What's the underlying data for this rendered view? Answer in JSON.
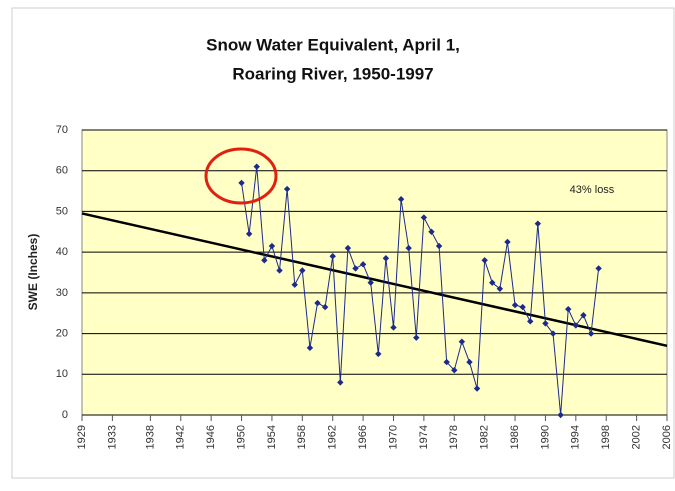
{
  "chart_data": {
    "type": "line",
    "title": [
      "Snow Water Equivalent, April 1,",
      "Roaring River, 1950-1997"
    ],
    "ylabel": "SWE (Inches)",
    "annotation": "43% loss",
    "x": [
      1950,
      1951,
      1952,
      1953,
      1954,
      1955,
      1956,
      1957,
      1958,
      1959,
      1960,
      1961,
      1962,
      1963,
      1964,
      1965,
      1966,
      1967,
      1968,
      1969,
      1970,
      1971,
      1972,
      1973,
      1974,
      1975,
      1976,
      1977,
      1978,
      1979,
      1980,
      1981,
      1982,
      1983,
      1984,
      1985,
      1986,
      1987,
      1988,
      1989,
      1990,
      1991,
      1992,
      1993,
      1994,
      1995,
      1996,
      1997
    ],
    "series": [
      {
        "color": "#1c2a8c",
        "values": [
          57,
          44.5,
          61,
          38,
          41.5,
          35.5,
          55.5,
          32,
          35.5,
          16.5,
          27.5,
          26.5,
          39,
          8,
          41,
          36,
          37,
          32.5,
          15,
          38.5,
          21.5,
          53,
          41,
          19,
          48.5,
          45,
          41.5,
          13,
          11,
          18,
          13,
          6.5,
          38,
          32.5,
          31,
          42.5,
          27,
          26.5,
          23,
          47,
          22.5,
          20,
          0,
          26,
          22,
          24.5,
          20,
          36
        ]
      }
    ],
    "trendline": {
      "color": "#000000",
      "x": [
        1929,
        2006
      ],
      "values": [
        49.5,
        17
      ]
    },
    "xlim": [
      1929,
      2006
    ],
    "xticks": [
      1929,
      1933,
      1938,
      1942,
      1946,
      1950,
      1954,
      1958,
      1962,
      1966,
      1970,
      1974,
      1978,
      1982,
      1986,
      1990,
      1994,
      1998,
      2002,
      2006
    ],
    "ylim": [
      0,
      70
    ],
    "yticks": [
      0,
      10,
      20,
      30,
      40,
      50,
      60,
      70
    ],
    "grid": true
  }
}
